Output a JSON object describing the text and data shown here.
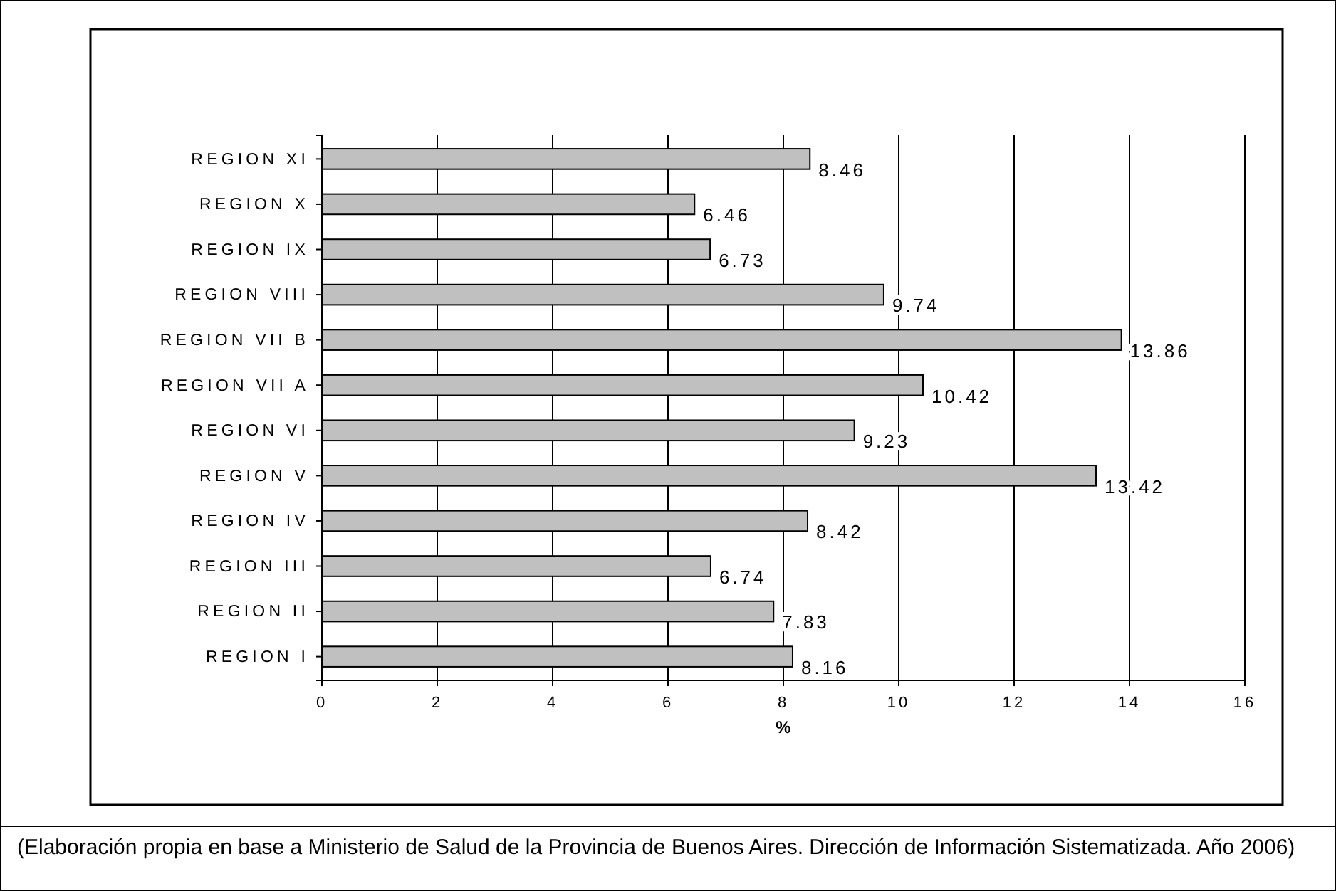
{
  "chart_data": {
    "type": "bar",
    "orientation": "horizontal",
    "xlabel": "%",
    "categories": [
      "REGION XI",
      "REGION X",
      "REGION IX",
      "REGION VIII",
      "REGION VII B",
      "REGION VII A",
      "REGION VI",
      "REGION V",
      "REGION IV",
      "REGION III",
      "REGION II",
      "REGION I"
    ],
    "values": [
      8.46,
      6.46,
      6.73,
      9.74,
      13.86,
      10.42,
      9.23,
      13.42,
      8.42,
      6.74,
      7.83,
      8.16
    ],
    "color": "#c0c0c0",
    "xlim": [
      0,
      16
    ],
    "xticks": [
      0,
      2,
      4,
      6,
      8,
      10,
      12,
      14,
      16
    ],
    "grid": "x",
    "data_labels": true,
    "annotations": [
      "(Elaboración propia en base a Ministerio de Salud de la Provincia de Buenos Aires. Dirección de Información Sistematizada. Año 2006)"
    ]
  }
}
